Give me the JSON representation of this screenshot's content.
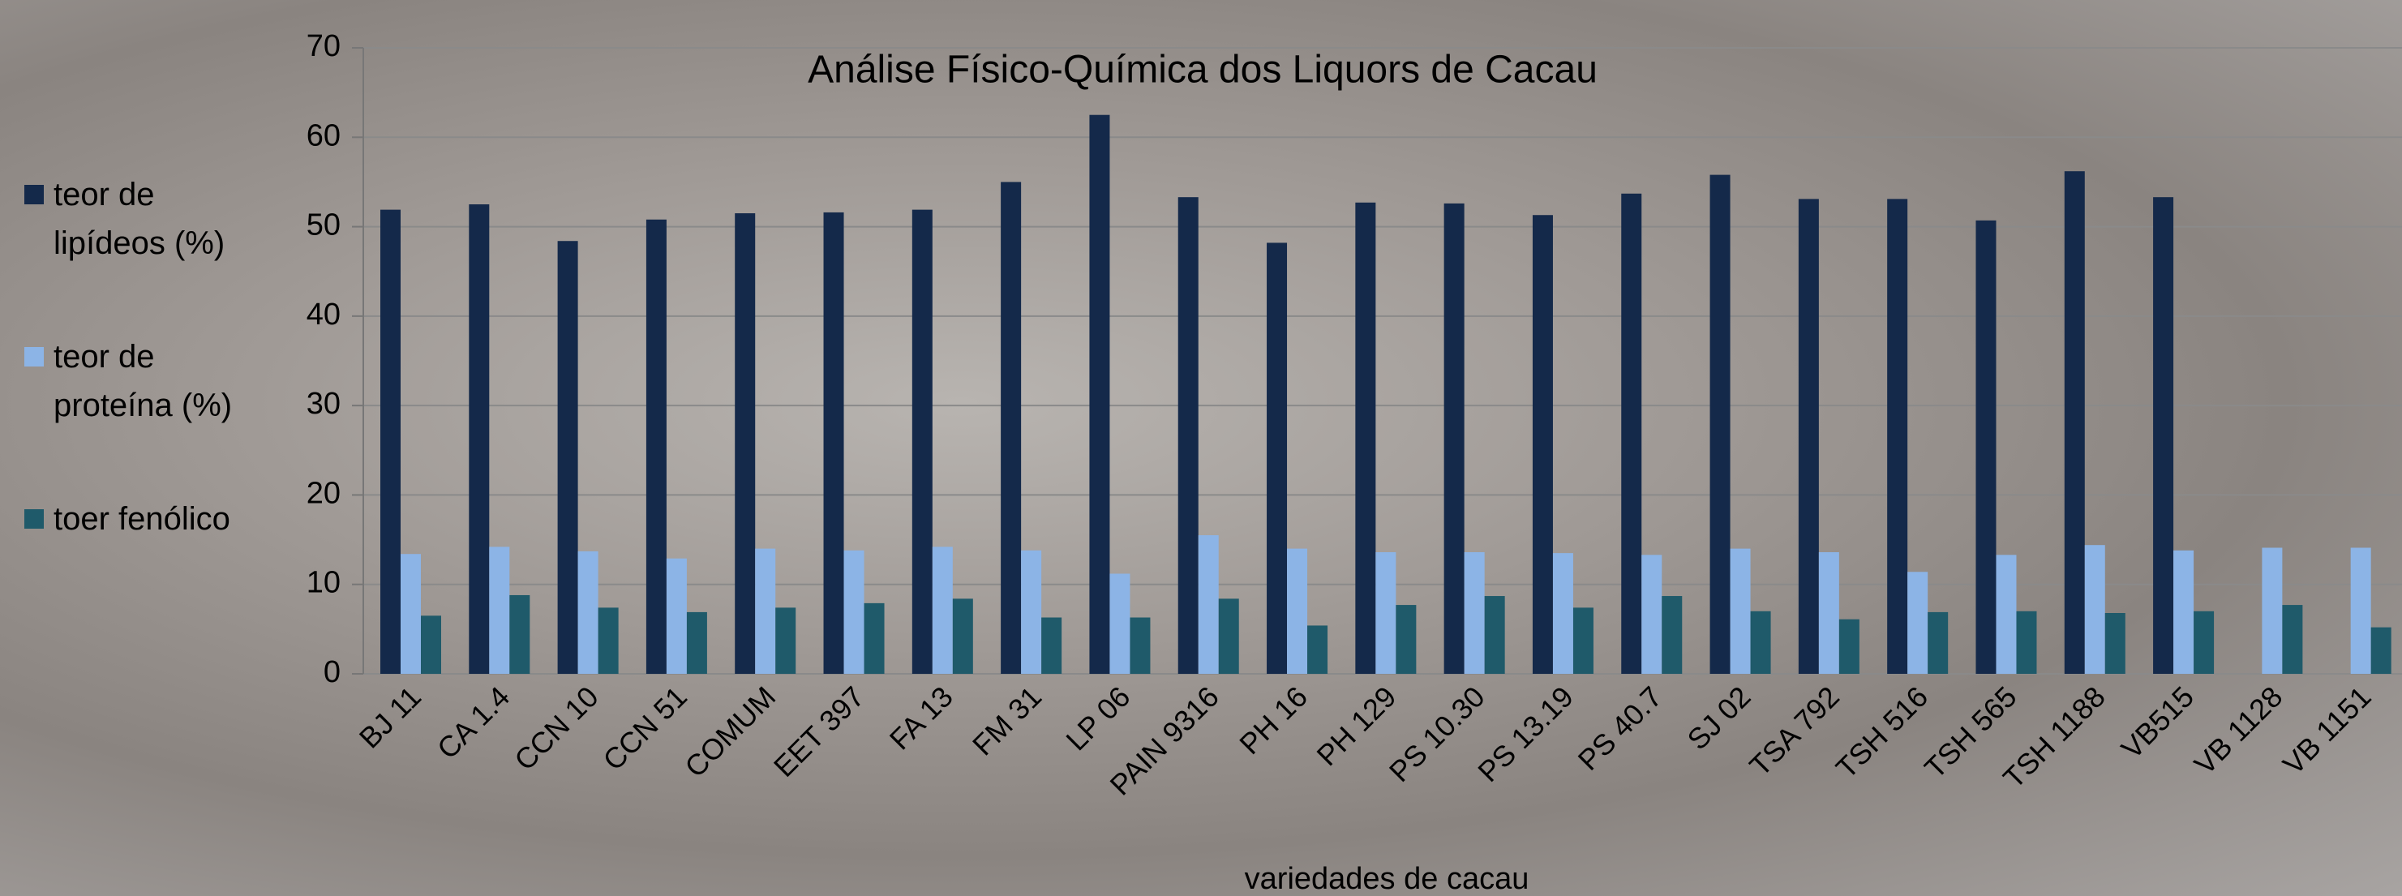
{
  "chart_data": {
    "type": "bar",
    "title": "Análise Físico-Química dos Liquors de Cacau",
    "x_label": "variedades de cacau",
    "categories": [
      "BJ 11",
      "CA 1.4",
      "CCN 10",
      "CCN 51",
      "COMUM",
      "EET 397",
      "FA 13",
      "FM 31",
      "LP 06",
      "PAIN 9316",
      "PH 16",
      "PH 129",
      "PS 10.30",
      "PS 13.19",
      "PS 40.7",
      "SJ 02",
      "TSA 792",
      "TSH 516",
      "TSH 565",
      "TSH 1188",
      "VB515",
      "VB 1128",
      "VB 1151"
    ],
    "series": [
      {
        "name": "teor de lipídeos (%)",
        "color": "#14294a",
        "values": [
          51.9,
          52.5,
          48.4,
          50.8,
          51.5,
          51.6,
          51.9,
          55.0,
          62.5,
          53.3,
          48.2,
          52.7,
          52.6,
          51.3,
          53.7,
          55.8,
          53.1,
          53.1,
          50.7,
          56.2,
          53.3,
          null,
          null
        ]
      },
      {
        "name": "teor de proteína (%)",
        "color": "#8cb4e6",
        "values": [
          13.4,
          14.2,
          13.7,
          12.9,
          14.0,
          13.8,
          14.2,
          13.8,
          11.2,
          15.5,
          14.0,
          13.6,
          13.6,
          13.5,
          13.3,
          14.0,
          13.6,
          11.4,
          13.3,
          14.4,
          13.8,
          14.1,
          14.1
        ]
      },
      {
        "name": "toer fenólico",
        "color": "#1f5a6a",
        "values": [
          6.5,
          8.8,
          7.4,
          6.9,
          7.4,
          7.9,
          8.4,
          6.3,
          6.3,
          8.4,
          5.4,
          7.7,
          8.7,
          7.4,
          8.7,
          7.0,
          6.1,
          6.9,
          7.0,
          6.8,
          7.0,
          7.7,
          5.2
        ]
      }
    ],
    "ylim": [
      0,
      70
    ],
    "yticks": [
      0,
      10,
      20,
      30,
      40,
      50,
      60,
      70
    ],
    "grid": true,
    "legend": "left"
  }
}
